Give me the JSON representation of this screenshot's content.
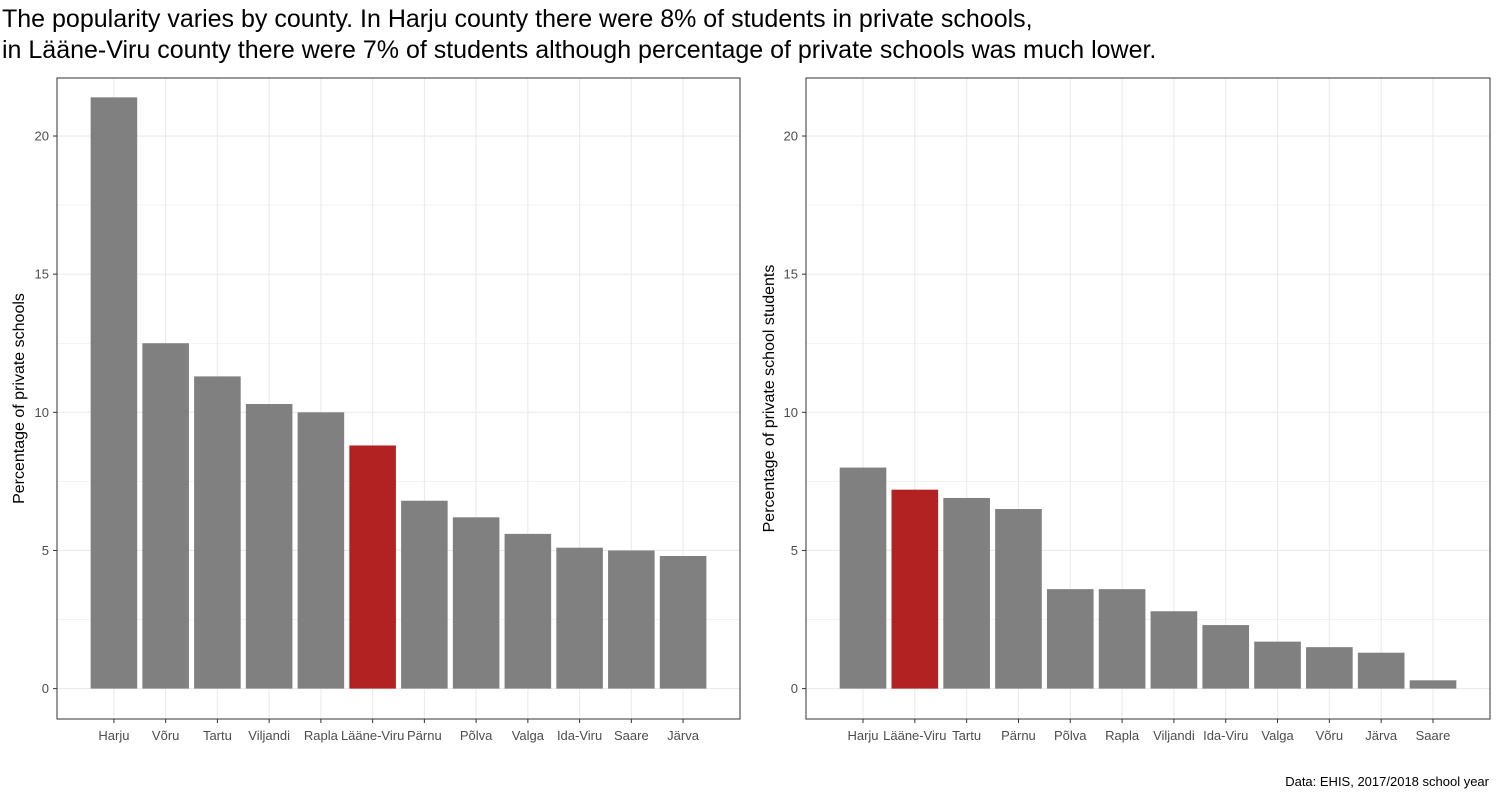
{
  "title": {
    "line1": "The popularity varies by county. In Harju county there were 8% of students in private schools,",
    "line2": "in Lääne-Viru county there were 7% of students although percentage of private schools was much lower."
  },
  "caption": "Data: EHIS, 2017/2018 school year",
  "colors": {
    "bar": "#808080",
    "highlight": "#b22222",
    "grid": "#ebebeb",
    "panel_border": "#333333"
  },
  "chart_data": [
    {
      "type": "bar",
      "title": "",
      "xlabel": "",
      "ylabel": "Percentage of private schools",
      "ylim": [
        -1.1,
        22.1
      ],
      "yticks": [
        0,
        5,
        10,
        15,
        20
      ],
      "highlight": "Lääne-Viru",
      "categories": [
        "Harju",
        "Võru",
        "Tartu",
        "Viljandi",
        "Rapla",
        "Lääne-Viru",
        "Pärnu",
        "Põlva",
        "Valga",
        "Ida-Viru",
        "Saare",
        "Järva"
      ],
      "values": [
        21.4,
        12.5,
        11.3,
        10.3,
        10.0,
        8.8,
        6.8,
        6.2,
        5.6,
        5.1,
        5.0,
        4.8
      ]
    },
    {
      "type": "bar",
      "title": "",
      "xlabel": "",
      "ylabel": "Percentage of private school students",
      "ylim": [
        -1.1,
        22.1
      ],
      "yticks": [
        0,
        5,
        10,
        15,
        20
      ],
      "highlight": "Lääne-Viru",
      "categories": [
        "Harju",
        "Lääne-Viru",
        "Tartu",
        "Pärnu",
        "Põlva",
        "Rapla",
        "Viljandi",
        "Ida-Viru",
        "Valga",
        "Võru",
        "Järva",
        "Saare"
      ],
      "values": [
        8.0,
        7.2,
        6.9,
        6.5,
        3.6,
        3.6,
        2.8,
        2.3,
        1.7,
        1.5,
        1.3,
        0.3
      ]
    }
  ]
}
